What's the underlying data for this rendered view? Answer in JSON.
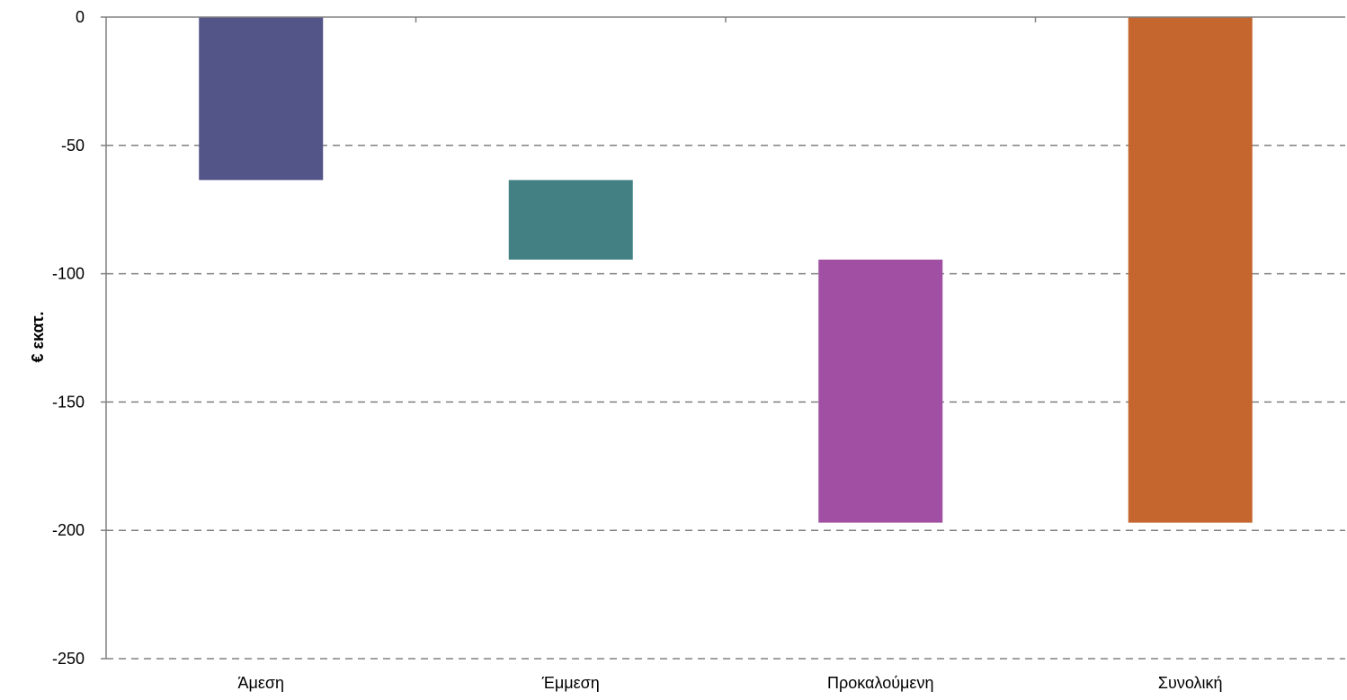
{
  "chart_data": {
    "type": "bar",
    "subtype": "waterfall",
    "title": "",
    "xlabel": "",
    "ylabel": "€ εκατ.",
    "ylim": [
      -250,
      0
    ],
    "yticks": [
      0,
      -50,
      -100,
      -150,
      -200,
      -250
    ],
    "grid": {
      "y": true,
      "style": "dashed",
      "color": "#808080"
    },
    "legend": "none",
    "categories": [
      "Άμεση",
      "Έμμεση",
      "Προκαλούμενη",
      "Συνολική"
    ],
    "bars": [
      {
        "category": "Άμεση",
        "start": 0,
        "end": -63.5,
        "value": -63.5,
        "color": "#535488"
      },
      {
        "category": "Έμμεση",
        "start": -63.5,
        "end": -94.5,
        "value": -31,
        "color": "#428084"
      },
      {
        "category": "Προκαλούμενη",
        "start": -94.5,
        "end": -197,
        "value": -102.5,
        "color": "#A04FA3"
      },
      {
        "category": "Συνολική",
        "start": 0,
        "end": -197,
        "value": -197,
        "color": "#C5662E"
      }
    ]
  }
}
